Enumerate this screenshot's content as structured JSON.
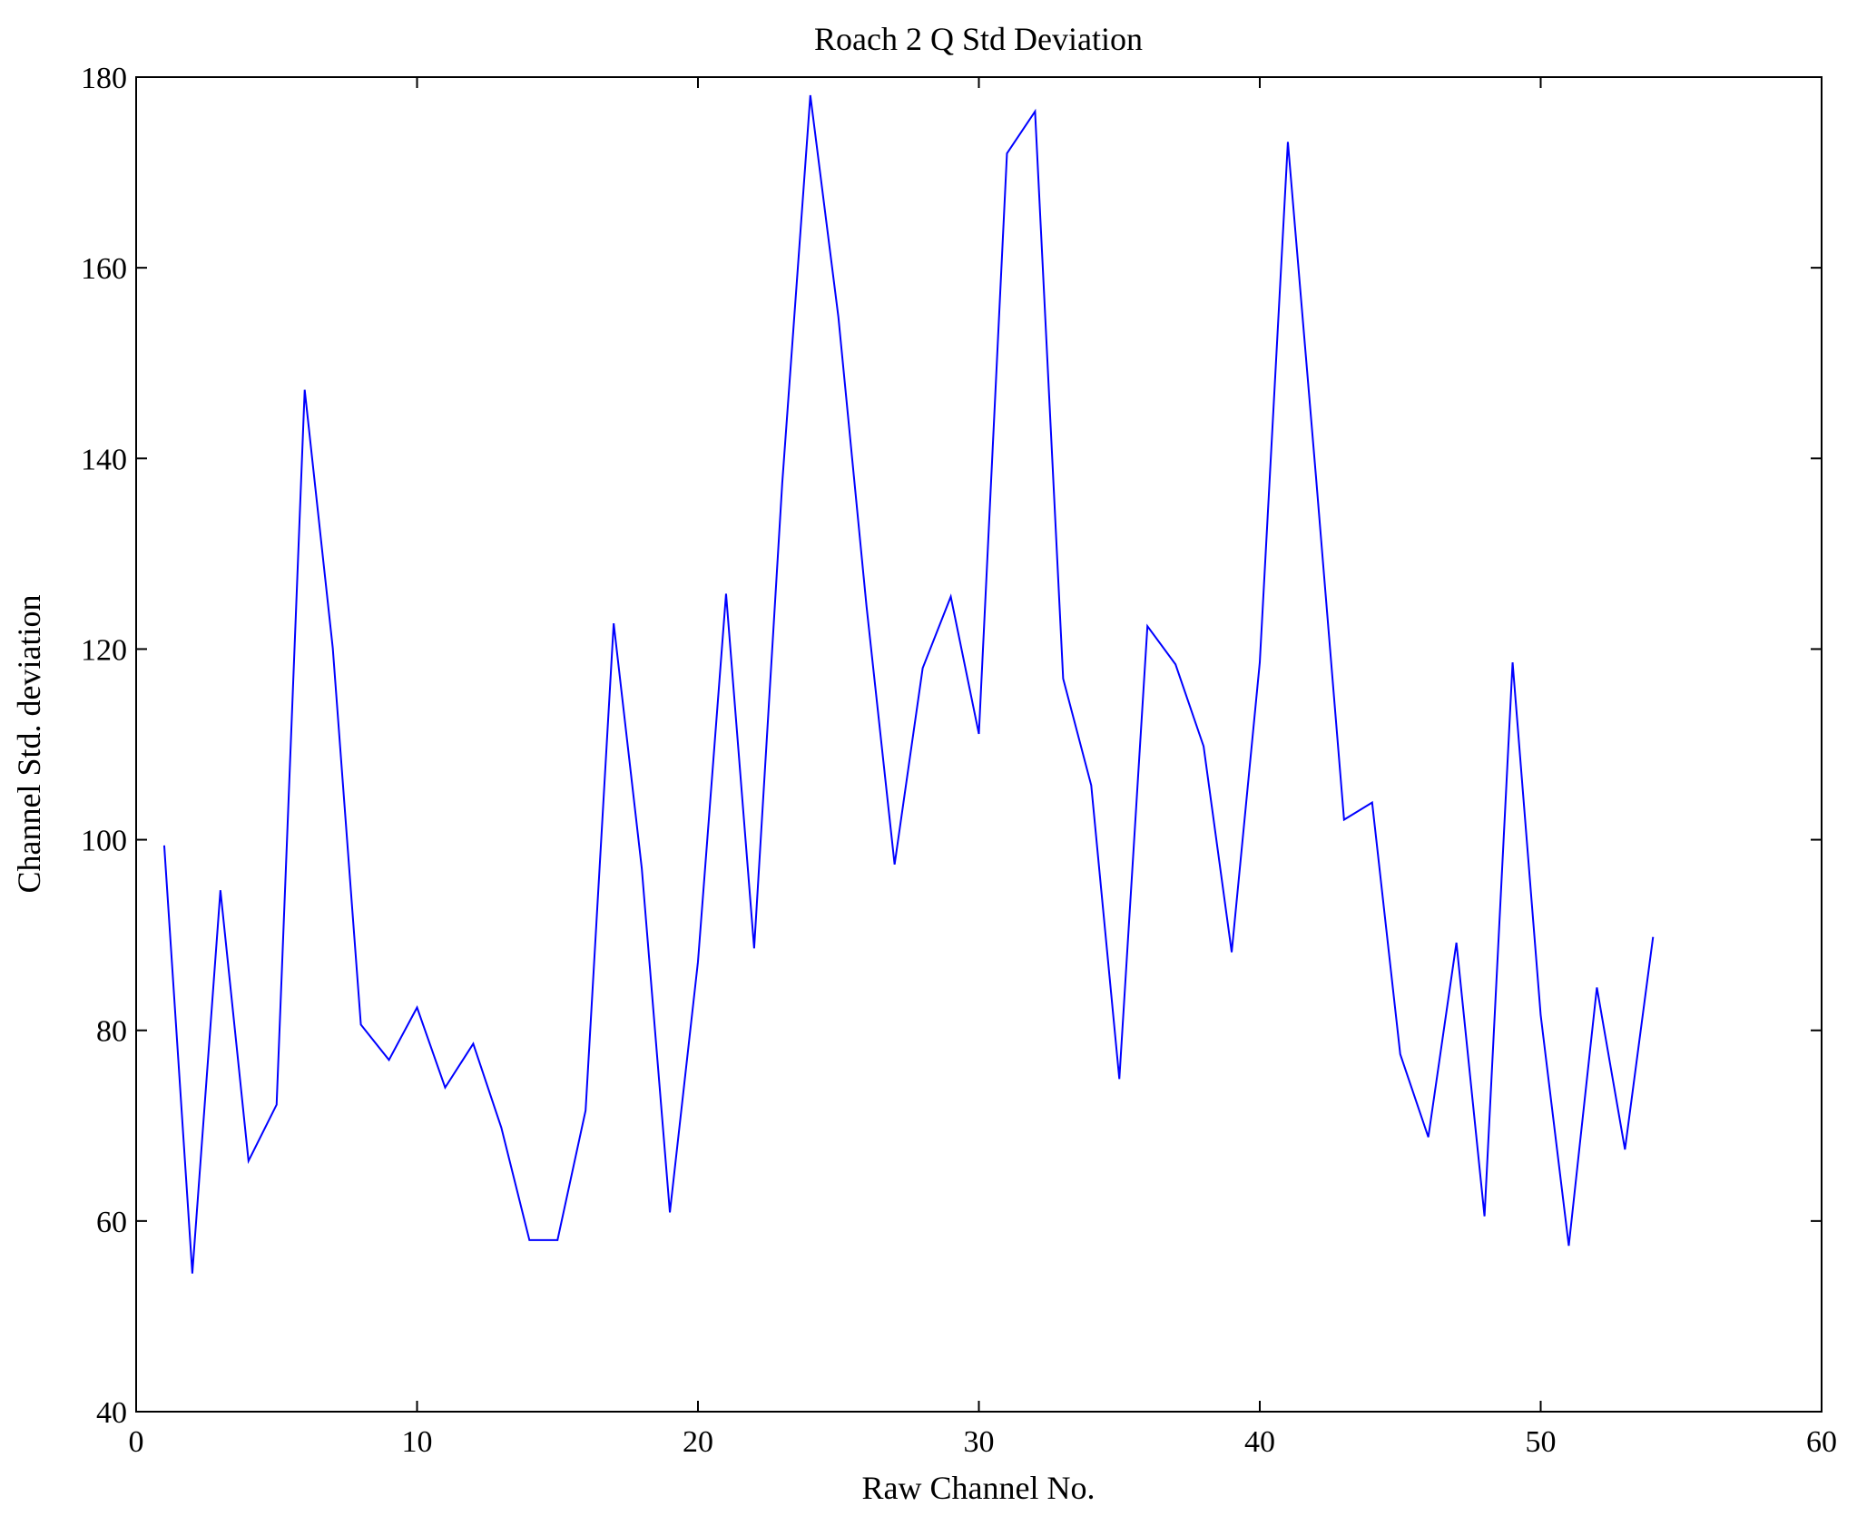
{
  "chart_data": {
    "type": "line",
    "title": "Roach 2 Q Std Deviation",
    "xlabel": "Raw Channel No.",
    "ylabel": "Channel Std. deviation",
    "xlim": [
      0,
      60
    ],
    "ylim": [
      40,
      180
    ],
    "xticks": [
      0,
      10,
      20,
      30,
      40,
      50,
      60
    ],
    "yticks": [
      40,
      60,
      80,
      100,
      120,
      140,
      160,
      180
    ],
    "grid": false,
    "series": [
      {
        "name": "Q std deviation",
        "color": "#0000ff",
        "x": [
          1,
          2,
          3,
          4,
          5,
          6,
          7,
          8,
          9,
          10,
          11,
          12,
          13,
          14,
          15,
          16,
          17,
          18,
          19,
          20,
          21,
          22,
          23,
          24,
          25,
          26,
          27,
          28,
          29,
          30,
          31,
          32,
          33,
          34,
          35,
          36,
          37,
          38,
          39,
          40,
          41,
          42,
          43,
          44,
          45,
          46,
          47,
          48,
          49,
          50,
          51,
          52,
          53,
          54
        ],
        "values": [
          99.4,
          54.5,
          94.7,
          66.3,
          72.2,
          147.2,
          120.1,
          80.6,
          76.9,
          82.4,
          74.0,
          78.6,
          69.8,
          58.0,
          58.0,
          71.6,
          122.7,
          97.0,
          60.9,
          87.2,
          125.8,
          88.6,
          137.4,
          178.1,
          154.8,
          124.5,
          97.4,
          118.0,
          125.5,
          111.1,
          172.0,
          176.4,
          116.9,
          105.7,
          74.9,
          122.4,
          118.4,
          109.8,
          88.2,
          118.6,
          173.2,
          138.1,
          102.1,
          103.9,
          77.5,
          68.8,
          89.2,
          60.5,
          118.6,
          81.6,
          57.4,
          84.5,
          67.5,
          89.8
        ]
      }
    ]
  }
}
